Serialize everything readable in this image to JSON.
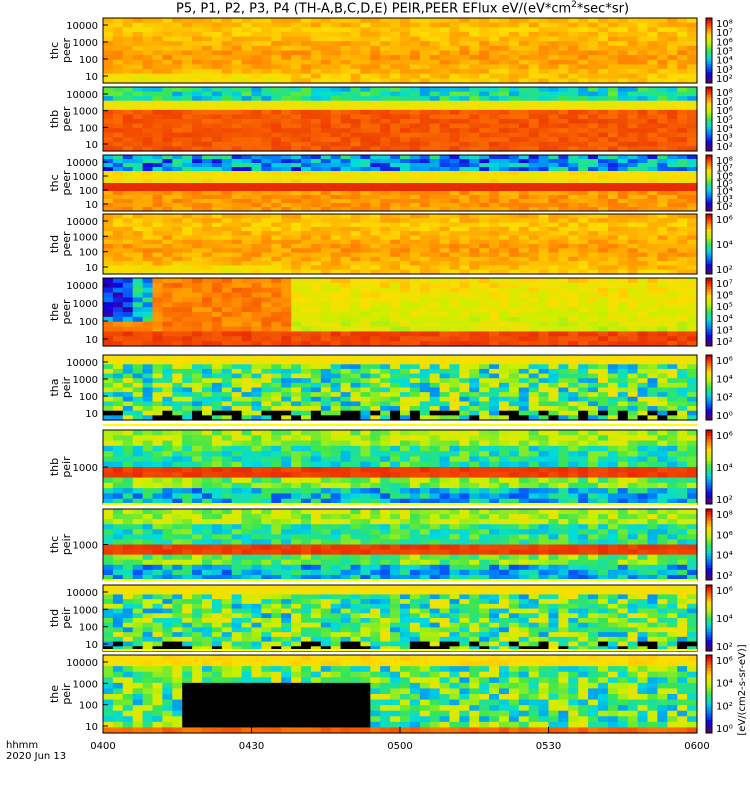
{
  "chart_data": {
    "type": "heatmap",
    "title_prefix": "P5, P1, P2, P3, P4 (TH-A,B,C,D,E) PEIR,PEER EFlux eV/(eV*cm",
    "title_sup": "2",
    "title_suffix": "*sec*sr)",
    "x_axis": {
      "label_line1": "hhmm",
      "label_line2": "2020 Jun 13",
      "ticks": [
        "0400",
        "0430",
        "0500",
        "0530",
        "0600"
      ],
      "range": [
        "0400",
        "0600"
      ]
    },
    "colorbar_unit": "[eV/(cm2-s-sr-eV)]",
    "panels": [
      {
        "ylabel": [
          "thc",
          "peer"
        ],
        "yticks": [
          "10000",
          "1000",
          "100",
          "10"
        ],
        "cticks": [
          "10⁸",
          "10⁷",
          "10⁶",
          "10⁵",
          "10⁴",
          "10³",
          "10²"
        ],
        "pattern": "flux-high"
      },
      {
        "ylabel": [
          "thb",
          "peer"
        ],
        "yticks": [
          "10000",
          "1000",
          "100",
          "10"
        ],
        "cticks": [
          "10⁸",
          "10⁷",
          "10⁶",
          "10⁵",
          "10⁴",
          "10³",
          "10²"
        ],
        "pattern": "banded-low"
      },
      {
        "ylabel": [
          "thc",
          "peer"
        ],
        "yticks": [
          "10000",
          "1000",
          "100",
          "10"
        ],
        "cticks": [
          "10⁸",
          "10⁷",
          "10⁶",
          "10⁵",
          "10⁴",
          "10³",
          "10²"
        ],
        "pattern": "banded-blue-top"
      },
      {
        "ylabel": [
          "thd",
          "peer"
        ],
        "yticks": [
          "10000",
          "1000",
          "100",
          "10"
        ],
        "cticks": [
          "10⁶",
          "10⁴",
          "10²"
        ],
        "pattern": "flux-high"
      },
      {
        "ylabel": [
          "the",
          "peer"
        ],
        "yticks": [
          "10000",
          "1000",
          "100",
          "10"
        ],
        "cticks": [
          "10⁷",
          "10⁶",
          "10⁵",
          "10⁴",
          "10³",
          "10²"
        ],
        "pattern": "the-peer"
      },
      {
        "ylabel": [
          "tha",
          "peir"
        ],
        "yticks": [
          "10000",
          "1000",
          "100",
          "10"
        ],
        "cticks": [
          "10⁶",
          "10⁴",
          "10²",
          "10⁰"
        ],
        "pattern": "noisy"
      },
      {
        "ylabel": [
          "thb",
          "peir"
        ],
        "yticks": [
          "1000"
        ],
        "cticks": [
          "10⁶",
          "10⁴",
          "10²"
        ],
        "pattern": "banded-peir"
      },
      {
        "ylabel": [
          "thc",
          "peir"
        ],
        "yticks": [
          "1000"
        ],
        "cticks": [
          "10⁸",
          "10⁶",
          "10⁴",
          "10²"
        ],
        "pattern": "banded-peir"
      },
      {
        "ylabel": [
          "thd",
          "peir"
        ],
        "yticks": [
          "10000",
          "1000",
          "100",
          "10"
        ],
        "cticks": [
          "10⁶",
          "10⁴",
          "10²"
        ],
        "pattern": "noisy"
      },
      {
        "ylabel": [
          "the",
          "peir"
        ],
        "yticks": [
          "10000",
          "1000",
          "100",
          "10"
        ],
        "cticks": [
          "10⁶",
          "10⁴",
          "10²",
          "10⁰"
        ],
        "pattern": "the-peir"
      }
    ]
  }
}
